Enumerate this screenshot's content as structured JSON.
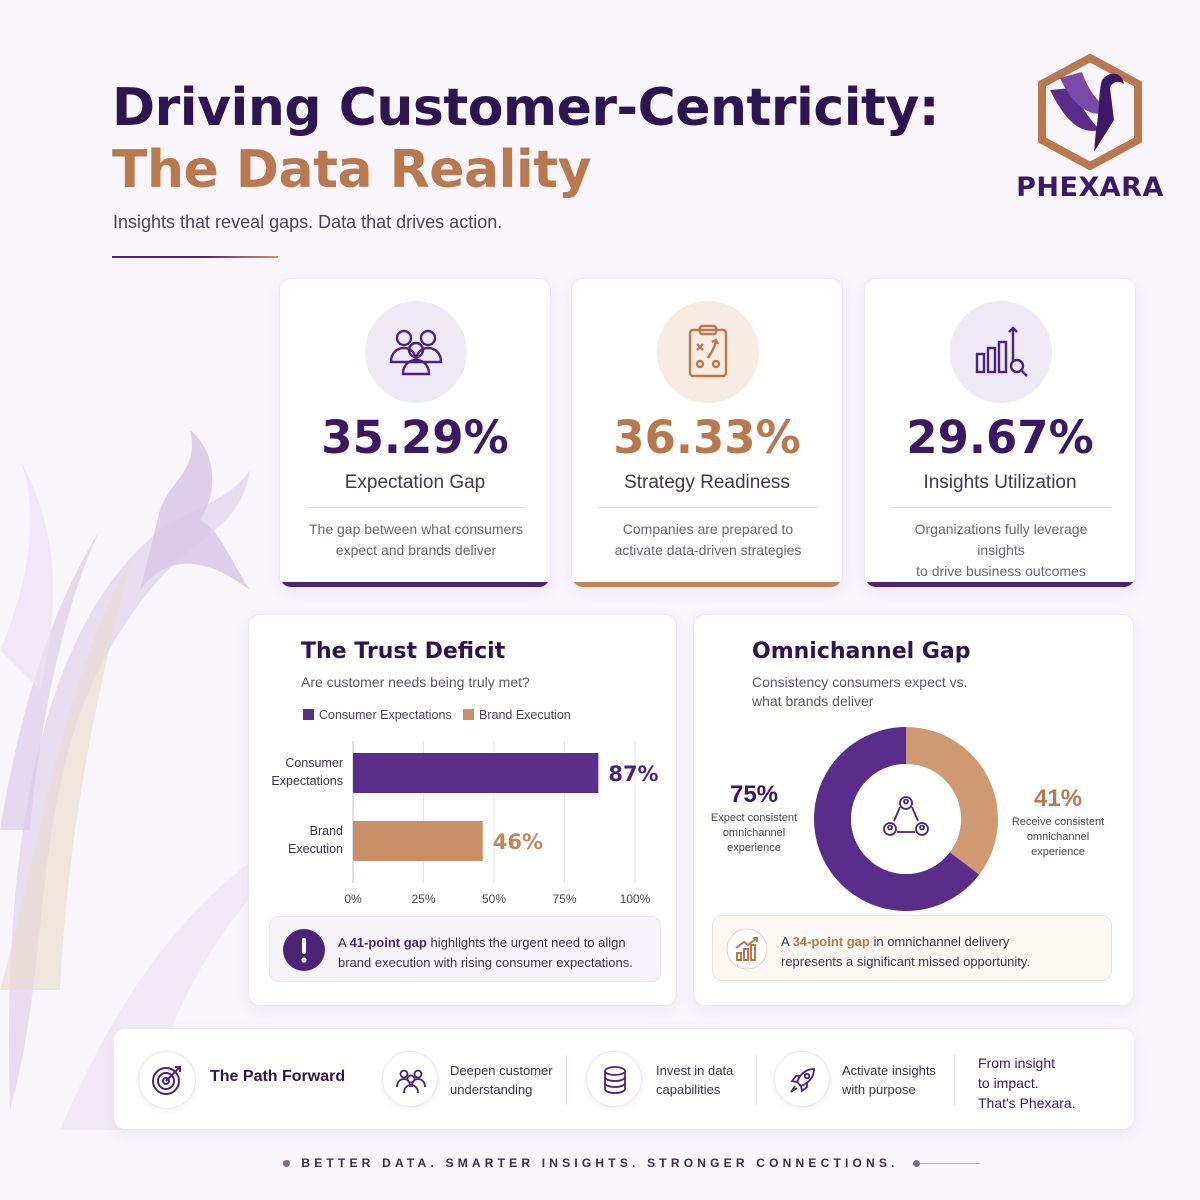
{
  "header": {
    "title_line1": "Driving Customer-Centricity:",
    "title_line2": "The Data Reality",
    "subtitle": "Insights that reveal gaps. Data that drives action."
  },
  "logo": {
    "text": "PHEXARA",
    "icon": "phoenix-hexagon-logo"
  },
  "colors": {
    "purple": "#4b2478",
    "copper": "#b9784e",
    "navy": "#2e1450"
  },
  "stats": [
    {
      "value": "35.29%",
      "label": "Expectation Gap",
      "desc_line1": "The gap between what consumers",
      "desc_line2": "expect and brands deliver",
      "icon": "people-group-icon"
    },
    {
      "value": "36.33%",
      "label": "Strategy Readiness",
      "desc_line1": "Companies are prepared to",
      "desc_line2": "activate data-driven strategies",
      "icon": "strategy-clipboard-icon"
    },
    {
      "value": "29.67%",
      "label": "Insights Utilization",
      "desc_line1": "Organizations fully leverage insights",
      "desc_line2": "to drive business outcomes",
      "icon": "bar-chart-magnifier-icon"
    }
  ],
  "trust": {
    "title": "The Trust Deficit",
    "subtitle": "Are customer needs being truly met?",
    "callout_prefix": "A ",
    "callout_bold": "41-point gap",
    "callout_rest1": " highlights the urgent need to align",
    "callout_rest2": "brand execution with rising consumer expectations."
  },
  "omni": {
    "title": "Omnichannel Gap",
    "subtitle_line1": "Consistency consumers expect vs.",
    "subtitle_line2": "what brands deliver",
    "left_value": "75%",
    "left_line1": "Expect consistent",
    "left_line2": "omnichannel",
    "left_line3": "experience",
    "right_value": "41%",
    "right_line1": "Receive consistent",
    "right_line2": "omnichannel",
    "right_line3": "experience",
    "callout_prefix": "A ",
    "callout_bold": "34-point gap",
    "callout_rest1": " in omnichannel delivery",
    "callout_rest2": "represents a significant missed opportunity."
  },
  "chart_data": [
    {
      "type": "bar",
      "orientation": "horizontal",
      "title": "The Trust Deficit",
      "categories": [
        "Consumer Expectations",
        "Brand Execution"
      ],
      "category_label_lines": [
        [
          "Consumer",
          "Expectations"
        ],
        [
          "Brand",
          "Execution"
        ]
      ],
      "values": [
        87,
        46
      ],
      "value_labels": [
        "87%",
        "46%"
      ],
      "legend": [
        "Consumer Expectations",
        "Brand Execution"
      ],
      "legend_position": "top-left",
      "xlim": [
        0,
        100
      ],
      "x_ticks": [
        "0%",
        "25%",
        "50%",
        "75%",
        "100%"
      ],
      "grid": true,
      "colors": [
        "#5b2d8a",
        "#c98f66"
      ]
    },
    {
      "type": "pie",
      "style": "donut",
      "title": "Omnichannel Gap",
      "slices": [
        {
          "name": "Expect consistent omnichannel experience",
          "value": 75,
          "color": "#5b2d8a"
        },
        {
          "name": "Receive consistent omnichannel experience",
          "value": 41,
          "color": "#cf9a72"
        }
      ]
    }
  ],
  "path_forward": {
    "title": "The Path Forward",
    "items": [
      {
        "line1": "Deepen customer",
        "line2": "understanding",
        "icon": "users-icon"
      },
      {
        "line1": "Invest in data",
        "line2": "capabilities",
        "icon": "database-icon"
      },
      {
        "line1": "Activate insights",
        "line2": "with purpose",
        "icon": "rocket-icon"
      }
    ],
    "closing_line1": "From insight",
    "closing_line2": "to impact.",
    "closing_line3": "That's Phexara."
  },
  "footer": {
    "tagline": "BETTER DATA. SMARTER INSIGHTS. STRONGER CONNECTIONS."
  }
}
